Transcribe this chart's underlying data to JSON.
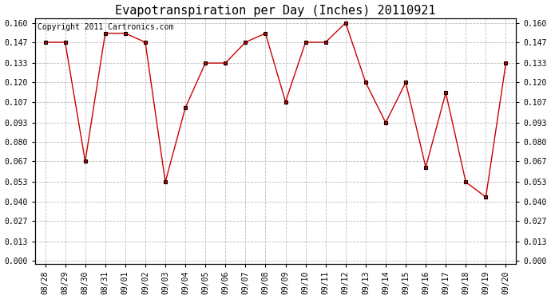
{
  "title": "Evapotranspiration per Day (Inches) 20110921",
  "copyright_text": "Copyright 2011 Cartronics.com",
  "x_labels": [
    "08/28",
    "08/29",
    "08/30",
    "08/31",
    "09/01",
    "09/02",
    "09/03",
    "09/04",
    "09/05",
    "09/06",
    "09/07",
    "09/08",
    "09/09",
    "09/10",
    "09/11",
    "09/12",
    "09/13",
    "09/14",
    "09/15",
    "09/16",
    "09/17",
    "09/18",
    "09/19",
    "09/20"
  ],
  "y_values": [
    0.147,
    0.147,
    0.067,
    0.153,
    0.153,
    0.147,
    0.053,
    0.103,
    0.133,
    0.133,
    0.147,
    0.153,
    0.107,
    0.147,
    0.147,
    0.16,
    0.12,
    0.093,
    0.12,
    0.063,
    0.113,
    0.053,
    0.043,
    0.133
  ],
  "line_color": "#cc0000",
  "marker": "s",
  "marker_size": 3,
  "marker_color": "#000000",
  "marker_face_color": "#cc0000",
  "background_color": "#ffffff",
  "plot_bg_color": "#ffffff",
  "grid_color": "#bbbbbb",
  "ylim_min": 0.0,
  "ylim_max": 0.16,
  "yticks": [
    0.0,
    0.013,
    0.027,
    0.04,
    0.053,
    0.067,
    0.08,
    0.093,
    0.107,
    0.12,
    0.133,
    0.147,
    0.16
  ],
  "title_fontsize": 11,
  "tick_fontsize": 7,
  "copyright_fontsize": 7
}
